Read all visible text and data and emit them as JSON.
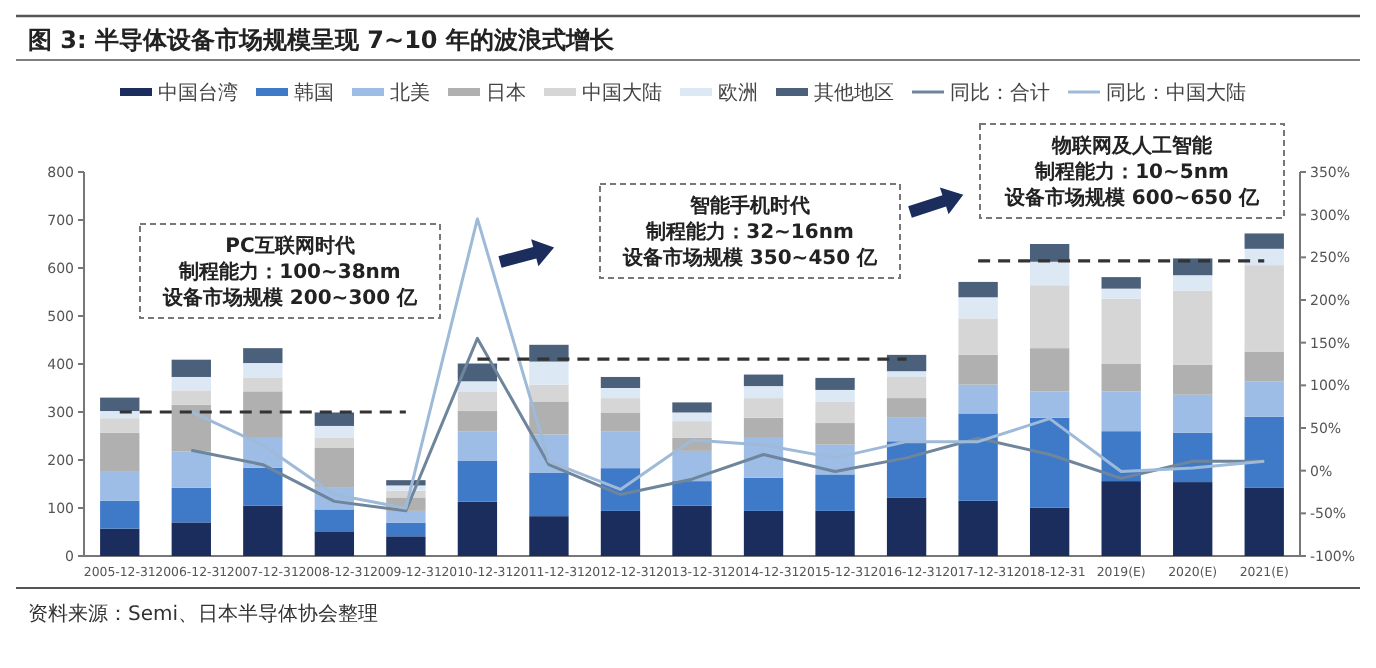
{
  "chart_data": {
    "type": "bar",
    "stacked": true,
    "title": "图 3: 半导体设备市场规模呈现 7~10 年的波浪式增长",
    "categories": [
      "2005-12-31",
      "2006-12-31",
      "2007-12-31",
      "2008-12-31",
      "2009-12-31",
      "2010-12-31",
      "2011-12-31",
      "2012-12-31",
      "2013-12-31",
      "2014-12-31",
      "2015-12-31",
      "2016-12-31",
      "2017-12-31",
      "2018-12-31",
      "2019(E)",
      "2020(E)",
      "2021(E)"
    ],
    "series": [
      {
        "name": "中国台湾",
        "color": "#1b2d5c",
        "values": [
          57,
          70,
          105,
          50,
          41,
          113,
          83,
          94,
          105,
          94,
          94,
          122,
          115,
          101,
          156,
          154,
          142
        ]
      },
      {
        "name": "韩国",
        "color": "#3f7ac8",
        "values": [
          58,
          72,
          79,
          47,
          28,
          85,
          90,
          89,
          51,
          69,
          76,
          117,
          182,
          187,
          104,
          103,
          148
        ]
      },
      {
        "name": "北美",
        "color": "#9dbde6",
        "values": [
          62,
          76,
          62,
          45,
          25,
          62,
          80,
          77,
          63,
          83,
          62,
          49,
          60,
          55,
          83,
          79,
          74
        ]
      },
      {
        "name": "日本",
        "color": "#b0b0b0",
        "values": [
          80,
          97,
          97,
          83,
          28,
          42,
          69,
          39,
          27,
          42,
          45,
          41,
          62,
          90,
          58,
          62,
          62
        ]
      },
      {
        "name": "中国大陆",
        "color": "#d6d6d6",
        "values": [
          30,
          30,
          28,
          21,
          14,
          41,
          35,
          30,
          35,
          41,
          45,
          44,
          76,
          131,
          135,
          155,
          180
        ]
      },
      {
        "name": "欧洲",
        "color": "#dde8f5",
        "values": [
          15,
          28,
          31,
          25,
          11,
          21,
          48,
          21,
          18,
          25,
          24,
          12,
          44,
          49,
          21,
          32,
          34
        ]
      },
      {
        "name": "其他地区",
        "color": "#4b607b",
        "values": [
          28,
          36,
          31,
          28,
          11,
          37,
          35,
          23,
          21,
          24,
          25,
          34,
          32,
          37,
          24,
          35,
          32
        ]
      },
      {
        "name": "同比：合计",
        "type": "line",
        "axis": "y2",
        "color": "#6f859c",
        "values": [
          null,
          24,
          7,
          -36,
          -47,
          155,
          7,
          -28,
          -10,
          19,
          -1,
          15,
          38,
          19,
          -9,
          11,
          11
        ]
      },
      {
        "name": "同比：中国大陆",
        "type": "line",
        "axis": "y2",
        "color": "#9fbad8",
        "values": [
          null,
          69,
          30,
          -28,
          -44,
          295,
          11,
          -22,
          36,
          30,
          15,
          34,
          34,
          61,
          -1,
          3,
          11
        ]
      },
      {
        "type": "line",
        "line_style": "dashed",
        "color": "#333333",
        "values": [
          300,
          300,
          300,
          300,
          300,
          null,
          null,
          null,
          null,
          null,
          null,
          null,
          null,
          null,
          null,
          null,
          null
        ]
      },
      {
        "type": "line",
        "line_style": "dashed",
        "color": "#333333",
        "values": [
          null,
          null,
          null,
          null,
          null,
          410,
          410,
          410,
          410,
          410,
          410,
          410,
          null,
          null,
          null,
          null,
          null
        ]
      },
      {
        "type": "line",
        "line_style": "dashed",
        "color": "#333333",
        "values": [
          null,
          null,
          null,
          null,
          null,
          null,
          null,
          null,
          null,
          null,
          null,
          null,
          615,
          615,
          615,
          615,
          615
        ]
      }
    ],
    "ylim": [
      0,
      800
    ],
    "yticks": [
      0,
      100,
      200,
      300,
      400,
      500,
      600,
      700,
      800
    ],
    "y2lim": [
      -100,
      350
    ],
    "y2ticks": [
      {
        "value": -100,
        "label": "-100%"
      },
      {
        "value": -50,
        "label": "-50%"
      },
      {
        "value": 0,
        "label": "0%"
      },
      {
        "value": 50,
        "label": "50%"
      },
      {
        "value": 100,
        "label": "100%"
      },
      {
        "value": 150,
        "label": "150%"
      },
      {
        "value": 200,
        "label": "200%"
      },
      {
        "value": 250,
        "label": "250%"
      },
      {
        "value": 300,
        "label": "300%"
      },
      {
        "value": 350,
        "label": "350%"
      }
    ],
    "legend": "top",
    "grid": false,
    "annotations": [
      "PC互联网时代",
      "制程能力：100~38nm",
      "设备市场规模 200~300 亿",
      "智能手机时代",
      "制程能力：32~16nm",
      "设备市场规模 350~450 亿",
      "物联网及人工智能",
      "制程能力：10~5nm",
      "设备市场规模 600~650 亿",
      "资料来源：Semi、日本半导体协会整理"
    ]
  }
}
